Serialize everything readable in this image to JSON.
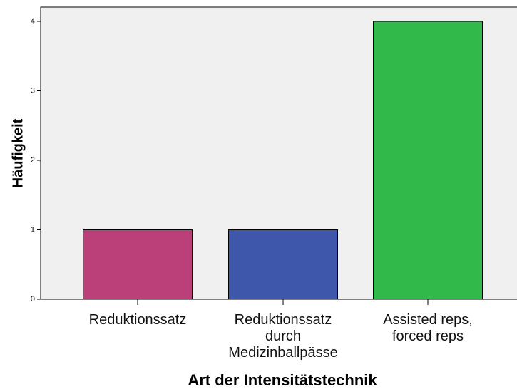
{
  "chart_data": {
    "type": "bar",
    "x_label": "Art der Intensitätstechnik",
    "y_label": "Häufigkeit",
    "categories": [
      "Reduktionssatz",
      "Reduktionssatz durch Medizinballpässe",
      "Assisted reps, forced reps"
    ],
    "values": [
      1,
      1,
      4
    ],
    "colors": [
      "#bb407a",
      "#3f57ab",
      "#31b94a"
    ],
    "ylim": [
      0,
      4
    ],
    "yticks": [
      0,
      1,
      2,
      3,
      4
    ]
  }
}
